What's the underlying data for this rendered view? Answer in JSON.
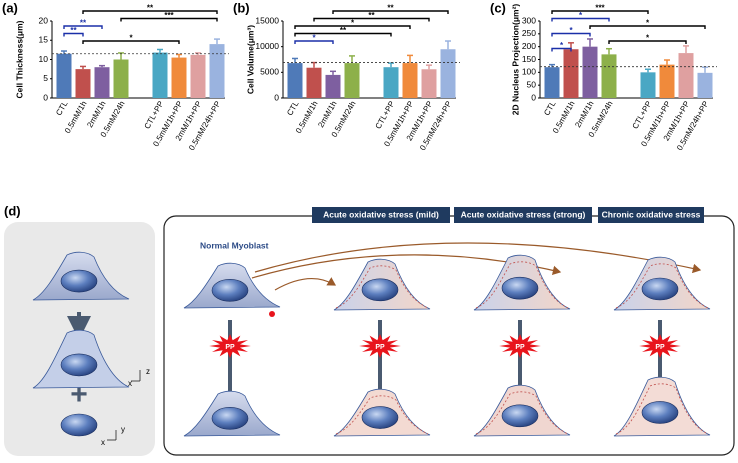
{
  "chart_data": [
    {
      "type": "bar",
      "panel": "(a)",
      "y_label": "Cell Thickness(μm)",
      "categories": [
        "CTL",
        "0.5mM/1h",
        "2mM/1h",
        "0.5mM/24h",
        "CTL+PP",
        "0.5mM/1h+PP",
        "2mM/1h+PP",
        "0.5mM/24h+PP"
      ],
      "values": [
        11.5,
        7.5,
        8.0,
        10.0,
        11.8,
        10.5,
        11.2,
        14.0
      ],
      "errors": [
        0.7,
        0.7,
        0.4,
        1.7,
        0.8,
        0.8,
        0.5,
        1.3
      ],
      "colors": [
        "#4f7ab8",
        "#c0504d",
        "#7e5fa0",
        "#8db04a",
        "#4aa7c4",
        "#f08a3b",
        "#dfa0a0",
        "#9ab3df"
      ],
      "ylim": [
        0,
        20
      ],
      "yticks": [
        0,
        5,
        10,
        15,
        20
      ],
      "reference_line": 11.5,
      "significance": [
        {
          "from": "0.5mM/1h",
          "to": "0.5mM/24h+PP",
          "label": "**",
          "color": "#000000"
        },
        {
          "from": "0.5mM/24h",
          "to": "0.5mM/24h+PP",
          "label": "***",
          "color": "#000000"
        },
        {
          "from": "CTL",
          "to": "2mM/1h",
          "label": "**",
          "color": "#1a2fa8"
        },
        {
          "from": "CTL",
          "to": "0.5mM/1h",
          "label": "**",
          "color": "#1a2fa8"
        },
        {
          "from": "0.5mM/1h",
          "to": "0.5mM/1h+PP",
          "label": "*",
          "color": "#000000"
        }
      ]
    },
    {
      "type": "bar",
      "panel": "(b)",
      "y_label": "Cell Volume(μm³)",
      "categories": [
        "CTL",
        "0.5mM/1h",
        "2mM/1h",
        "0.5mM/24h",
        "CTL+PP",
        "0.5mM/1h+PP",
        "2mM/1h+PP",
        "0.5mM/24h+PP"
      ],
      "values": [
        6800,
        5900,
        4500,
        6800,
        6000,
        6800,
        5600,
        9500
      ],
      "errors": [
        900,
        1000,
        700,
        1400,
        800,
        1500,
        800,
        1600
      ],
      "colors": [
        "#4f7ab8",
        "#c0504d",
        "#7e5fa0",
        "#8db04a",
        "#4aa7c4",
        "#f08a3b",
        "#dfa0a0",
        "#9ab3df"
      ],
      "ylim": [
        0,
        15000
      ],
      "yticks": [
        0,
        5000,
        10000,
        15000
      ],
      "reference_line": 6900,
      "significance": [
        {
          "from": "2mM/1h",
          "to": "0.5mM/24h+PP",
          "label": "**",
          "color": "#000000"
        },
        {
          "from": "0.5mM/1h",
          "to": "2mM/1h+PP",
          "label": "**",
          "color": "#000000"
        },
        {
          "from": "CTL",
          "to": "0.5mM/1h+PP",
          "label": "*",
          "color": "#000000"
        },
        {
          "from": "CTL",
          "to": "CTL+PP",
          "label": "**",
          "color": "#000000"
        },
        {
          "from": "CTL",
          "to": "2mM/1h",
          "label": "*",
          "color": "#1a2fa8"
        }
      ]
    },
    {
      "type": "bar",
      "panel": "(c)",
      "y_label": "2D Nucleus Projection(μm²)",
      "categories": [
        "CTL",
        "0.5mM/1h",
        "2mM/1h",
        "0.5mM/24h",
        "CTL+PP",
        "0.5mM/1h+PP",
        "2mM/1h+PP",
        "0.5mM/24h+PP"
      ],
      "values": [
        120,
        190,
        200,
        170,
        100,
        130,
        175,
        98
      ],
      "errors": [
        10,
        25,
        30,
        22,
        12,
        18,
        28,
        22
      ],
      "colors": [
        "#4f7ab8",
        "#c0504d",
        "#7e5fa0",
        "#8db04a",
        "#4aa7c4",
        "#f08a3b",
        "#dfa0a0",
        "#9ab3df"
      ],
      "ylim": [
        0,
        300
      ],
      "yticks": [
        0,
        50,
        100,
        150,
        200,
        250,
        300
      ],
      "reference_line": 122,
      "significance": [
        {
          "from": "CTL",
          "to": "CTL+PP",
          "label": "***",
          "color": "#000000"
        },
        {
          "from": "CTL",
          "to": "0.5mM/24h",
          "label": "*",
          "color": "#1a2fa8"
        },
        {
          "from": "2mM/1h",
          "to": "0.5mM/24h+PP",
          "label": "*",
          "color": "#000000"
        },
        {
          "from": "CTL",
          "to": "2mM/1h",
          "label": "*",
          "color": "#1a2fa8"
        },
        {
          "from": "0.5mM/24h",
          "to": "2mM/1h+PP",
          "label": "*",
          "color": "#000000"
        },
        {
          "from": "CTL",
          "to": "0.5mM/1h",
          "label": "*",
          "color": "#1a2fa8"
        }
      ]
    }
  ],
  "diagram": {
    "panel": "(d)",
    "headers": [
      "Acute oxidative stress (mild)",
      "Acute oxidative stress (strong)",
      "Chronic oxidative stress"
    ],
    "cell_label": "Normal Myoblast",
    "pp_labels": [
      "PP",
      "PP",
      "PP",
      "PP"
    ],
    "axes_side": {
      "horizontal": "x",
      "vertical": "z"
    },
    "axes_top": {
      "horizontal": "x",
      "vertical": "y"
    },
    "plus": "+"
  }
}
